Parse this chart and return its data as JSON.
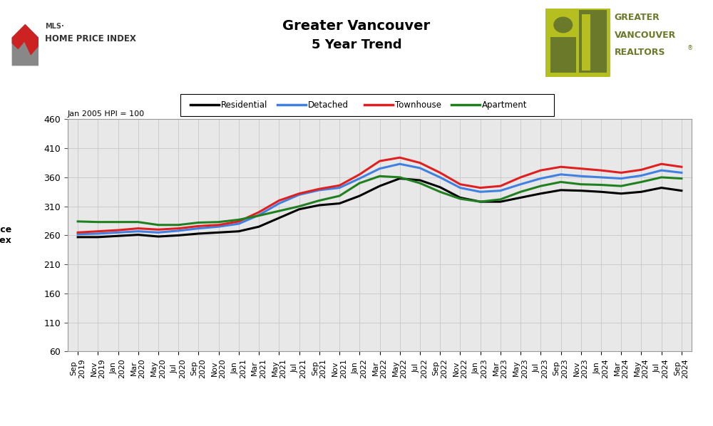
{
  "title_line1": "Greater Vancouver",
  "title_line2": "5 Year Trend",
  "ylabel_top": "Jan 2005 HPI = 100",
  "ylabel_main": "Price\nIndex",
  "ylim": [
    60,
    460
  ],
  "yticks": [
    60,
    110,
    160,
    210,
    260,
    310,
    360,
    410,
    460
  ],
  "bg_color": "#e8e8e8",
  "outer_bg": "#ffffff",
  "x_labels": [
    "Sep\n2019",
    "Nov\n2019",
    "Jan\n2020",
    "Mar\n2020",
    "May\n2020",
    "Jul\n2020",
    "Sep\n2020",
    "Nov\n2020",
    "Jan\n2021",
    "Mar\n2021",
    "May\n2021",
    "Jul\n2021",
    "Sep\n2021",
    "Nov\n2021",
    "Jan\n2022",
    "Mar\n2022",
    "May\n2022",
    "Jul\n2022",
    "Sep\n2022",
    "Nov\n2022",
    "Jan\n2023",
    "Mar\n2023",
    "May\n2023",
    "Jul\n2023",
    "Sep\n2023",
    "Nov\n2023",
    "Jan\n2024",
    "Mar\n2024",
    "May\n2024",
    "Jul\n2024",
    "Sep\n2024"
  ],
  "residential": [
    257,
    257,
    259,
    261,
    258,
    260,
    263,
    265,
    267,
    275,
    290,
    305,
    312,
    315,
    328,
    345,
    358,
    355,
    343,
    325,
    318,
    318,
    325,
    332,
    338,
    337,
    335,
    332,
    335,
    342,
    337
  ],
  "detached": [
    262,
    263,
    265,
    267,
    265,
    268,
    272,
    275,
    280,
    295,
    315,
    330,
    338,
    342,
    358,
    375,
    383,
    376,
    360,
    342,
    335,
    337,
    348,
    358,
    365,
    362,
    360,
    358,
    363,
    372,
    368
  ],
  "townhouse": [
    265,
    267,
    269,
    272,
    270,
    272,
    276,
    278,
    284,
    300,
    320,
    332,
    340,
    346,
    365,
    388,
    394,
    385,
    368,
    348,
    342,
    345,
    360,
    372,
    378,
    375,
    372,
    368,
    373,
    383,
    378
  ],
  "apartment": [
    284,
    283,
    283,
    283,
    278,
    278,
    282,
    283,
    287,
    294,
    302,
    310,
    320,
    328,
    350,
    362,
    360,
    350,
    335,
    323,
    318,
    322,
    335,
    345,
    352,
    348,
    347,
    345,
    352,
    360,
    358
  ],
  "line_colors": {
    "residential": "#000000",
    "detached": "#4080e0",
    "townhouse": "#e02020",
    "apartment": "#208020"
  },
  "line_width": 2.2,
  "gvr_color": "#6b7a2a",
  "gvr_logo_color": "#b5c020"
}
